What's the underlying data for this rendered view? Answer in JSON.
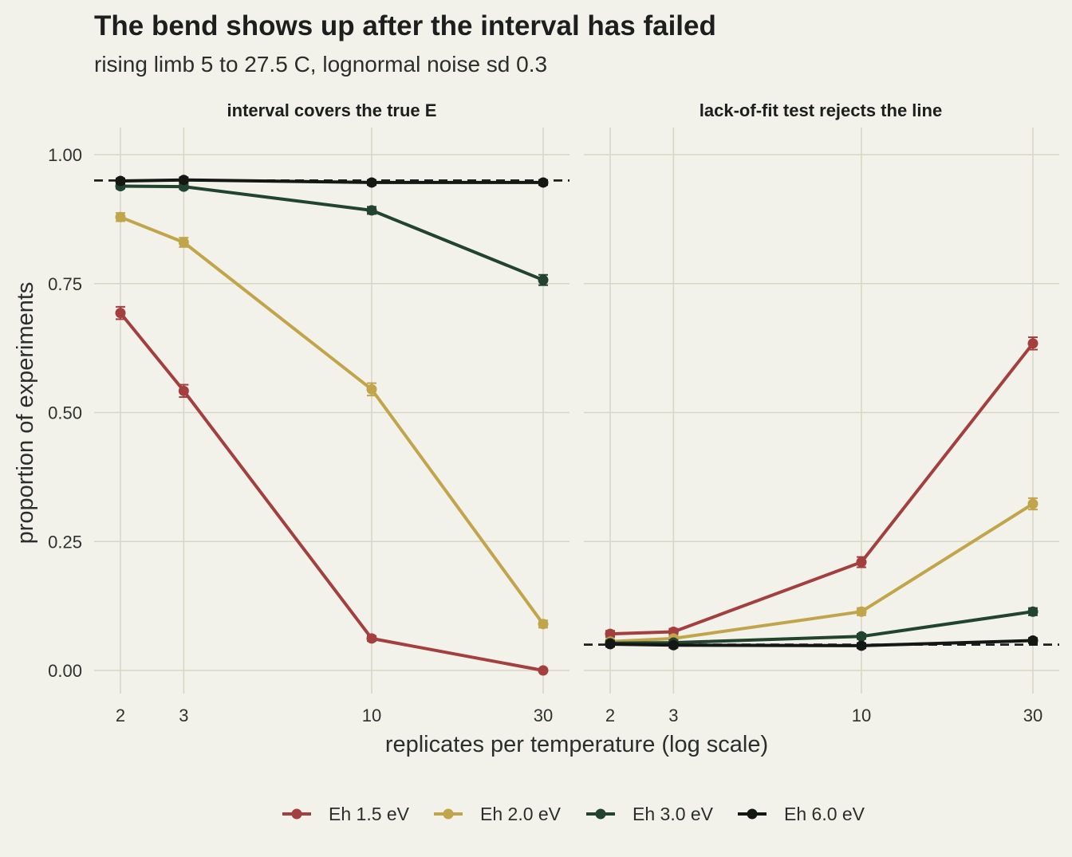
{
  "chart_data": {
    "type": "line",
    "title": "The bend shows up after the interval has failed",
    "subtitle": "rising limb 5 to 27.5 C, lognormal noise sd 0.3",
    "xlabel": "replicates per temperature (log scale)",
    "ylabel": "proportion of experiments",
    "x_scale": "log",
    "x_ticks": [
      2,
      3,
      10,
      30
    ],
    "x_tick_labels": [
      "2",
      "3",
      "10",
      "30"
    ],
    "y_ticks": [
      0,
      0.25,
      0.5,
      0.75,
      1.0
    ],
    "y_tick_labels": [
      "0.00",
      "0.25",
      "0.50",
      "0.75",
      "1.00"
    ],
    "ylim": [
      -0.045,
      1.03
    ],
    "grid": true,
    "legend_position": "bottom",
    "colors": {
      "background": "#f2f1ea",
      "grid": "#d8d7c6",
      "reference_line": "#1c1f1d"
    },
    "series_styles": [
      {
        "name": "Eh 1.5 eV",
        "color": "#a33f3f"
      },
      {
        "name": "Eh 2.0 eV",
        "color": "#c1a54b"
      },
      {
        "name": "Eh 3.0 eV",
        "color": "#21432f"
      },
      {
        "name": "Eh 6.0 eV",
        "color": "#141814"
      }
    ],
    "panels": [
      {
        "strip": "interval covers the true E",
        "reference": 0.95,
        "series": [
          {
            "name": "Eh 1.5 eV",
            "x": [
              2,
              3,
              10,
              30
            ],
            "y": [
              0.693,
              0.542,
              0.062,
              0.0
            ],
            "err": [
              0.012,
              0.012,
              0.005,
              0.0
            ]
          },
          {
            "name": "Eh 2.0 eV",
            "x": [
              2,
              3,
              10,
              30
            ],
            "y": [
              0.879,
              0.83,
              0.545,
              0.09
            ],
            "err": [
              0.008,
              0.009,
              0.012,
              0.007
            ]
          },
          {
            "name": "Eh 3.0 eV",
            "x": [
              2,
              3,
              10,
              30
            ],
            "y": [
              0.939,
              0.938,
              0.892,
              0.757
            ],
            "err": [
              0.005,
              0.005,
              0.007,
              0.01
            ]
          },
          {
            "name": "Eh 6.0 eV",
            "x": [
              2,
              3,
              10,
              30
            ],
            "y": [
              0.949,
              0.951,
              0.946,
              0.946
            ],
            "err": [
              0.005,
              0.005,
              0.005,
              0.005
            ]
          }
        ]
      },
      {
        "strip": "lack-of-fit test rejects the line",
        "reference": 0.05,
        "series": [
          {
            "name": "Eh 1.5 eV",
            "x": [
              2,
              3,
              10,
              30
            ],
            "y": [
              0.071,
              0.075,
              0.21,
              0.634
            ],
            "err": [
              0.006,
              0.006,
              0.01,
              0.012
            ]
          },
          {
            "name": "Eh 2.0 eV",
            "x": [
              2,
              3,
              10,
              30
            ],
            "y": [
              0.056,
              0.062,
              0.114,
              0.323
            ],
            "err": [
              0.005,
              0.005,
              0.007,
              0.011
            ]
          },
          {
            "name": "Eh 3.0 eV",
            "x": [
              2,
              3,
              10,
              30
            ],
            "y": [
              0.053,
              0.054,
              0.066,
              0.114
            ],
            "err": [
              0.005,
              0.005,
              0.005,
              0.007
            ]
          },
          {
            "name": "Eh 6.0 eV",
            "x": [
              2,
              3,
              10,
              30
            ],
            "y": [
              0.051,
              0.049,
              0.048,
              0.058
            ],
            "err": [
              0.005,
              0.005,
              0.005,
              0.005
            ]
          }
        ]
      }
    ]
  }
}
